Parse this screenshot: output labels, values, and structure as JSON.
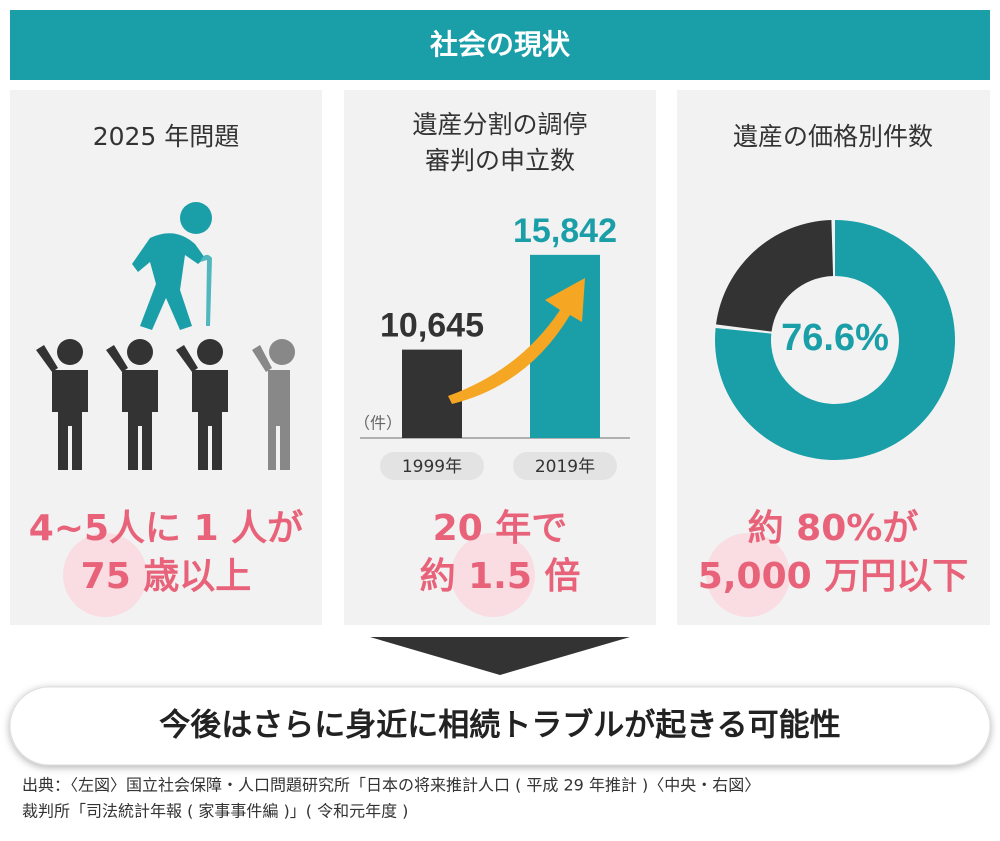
{
  "header": {
    "title": "社会の現状"
  },
  "panels": [
    {
      "title_lines": [
        "2025 年問題"
      ],
      "highlight_lines": [
        "4~5人に 1 人が",
        "75 歳以上"
      ]
    },
    {
      "title_lines": [
        "遺産分割の調停",
        "審判の申立数"
      ],
      "chart_data": {
        "type": "bar",
        "categories": [
          "1999年",
          "2019年"
        ],
        "values": [
          10645,
          15842
        ],
        "value_labels": [
          "10,645",
          "15,842"
        ],
        "colors": [
          "#333333",
          "#1a9fa8"
        ],
        "ylim": [
          5800,
          18300
        ],
        "unit_label": "（件）"
      },
      "highlight_lines": [
        "20 年で",
        "約 1.5 倍"
      ]
    },
    {
      "title_lines": [
        "遺産の価格別件数"
      ],
      "chart_data": {
        "type": "pie",
        "values": [
          76.6
        ],
        "value_labels": [
          "76.6%"
        ],
        "color": "#1a9fa8",
        "rest_color": "#333333"
      },
      "highlight_lines": [
        "約 80%が",
        "5,000 万円以下"
      ]
    }
  ],
  "conclusion": "今後はさらに身近に相続トラブルが起きる可能性",
  "source_lines": [
    "出典：〈左図〉国立社会保障・人口問題研究所「日本の将来推計人口 ( 平成 29 年推計 )〈中央・右図〉",
    "裁判所「司法統計年報 ( 家事事件編 )」( 令和元年度 )"
  ]
}
